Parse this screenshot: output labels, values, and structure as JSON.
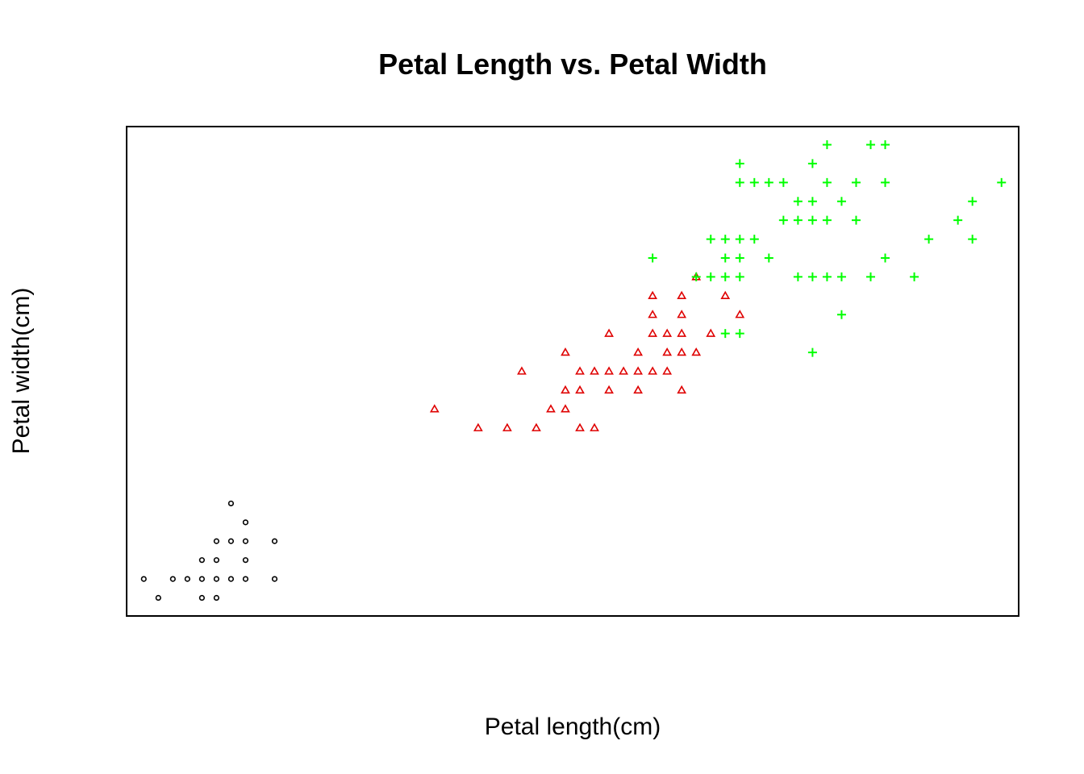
{
  "chart_data": {
    "type": "scatter",
    "title": "Petal Length vs. Petal Width",
    "xlabel": "Petal length(cm)",
    "ylabel": "Petal width(cm)",
    "xlim": [
      0.882,
      7.018
    ],
    "ylim": [
      0.004,
      2.596
    ],
    "axes_ticks_shown": false,
    "grid": false,
    "legend": "none",
    "series": [
      {
        "marker": "circle",
        "color": "#000000",
        "points": [
          [
            1.1,
            0.1
          ],
          [
            1.2,
            0.2
          ],
          [
            1.3,
            0.2
          ],
          [
            1.4,
            0.1
          ],
          [
            1.4,
            0.2
          ],
          [
            1.4,
            0.3
          ],
          [
            1.5,
            0.1
          ],
          [
            1.5,
            0.2
          ],
          [
            1.5,
            0.3
          ],
          [
            1.5,
            0.4
          ],
          [
            1.6,
            0.2
          ],
          [
            1.6,
            0.4
          ],
          [
            1.6,
            0.6
          ],
          [
            1.7,
            0.2
          ],
          [
            1.7,
            0.3
          ],
          [
            1.7,
            0.4
          ],
          [
            1.7,
            0.5
          ],
          [
            1.9,
            0.2
          ],
          [
            1.9,
            0.4
          ],
          [
            1.0,
            0.2
          ]
        ]
      },
      {
        "marker": "triangle",
        "color": "#DF0000",
        "points": [
          [
            3.0,
            1.1
          ],
          [
            3.3,
            1.0
          ],
          [
            3.5,
            1.0
          ],
          [
            3.6,
            1.3
          ],
          [
            3.7,
            1.0
          ],
          [
            3.8,
            1.1
          ],
          [
            3.9,
            1.1
          ],
          [
            3.9,
            1.2
          ],
          [
            3.9,
            1.4
          ],
          [
            4.0,
            1.0
          ],
          [
            4.0,
            1.2
          ],
          [
            4.0,
            1.3
          ],
          [
            4.1,
            1.0
          ],
          [
            4.1,
            1.3
          ],
          [
            4.2,
            1.2
          ],
          [
            4.2,
            1.3
          ],
          [
            4.2,
            1.5
          ],
          [
            4.3,
            1.3
          ],
          [
            4.4,
            1.2
          ],
          [
            4.4,
            1.3
          ],
          [
            4.4,
            1.4
          ],
          [
            4.5,
            1.3
          ],
          [
            4.5,
            1.5
          ],
          [
            4.5,
            1.6
          ],
          [
            4.5,
            1.7
          ],
          [
            4.6,
            1.3
          ],
          [
            4.6,
            1.4
          ],
          [
            4.6,
            1.5
          ],
          [
            4.7,
            1.2
          ],
          [
            4.7,
            1.4
          ],
          [
            4.7,
            1.5
          ],
          [
            4.7,
            1.6
          ],
          [
            4.7,
            1.7
          ],
          [
            4.8,
            1.4
          ],
          [
            4.8,
            1.8
          ],
          [
            4.9,
            1.5
          ],
          [
            5.0,
            1.7
          ],
          [
            5.1,
            1.6
          ]
        ]
      },
      {
        "marker": "plus",
        "color": "#00FF00",
        "points": [
          [
            4.5,
            1.9
          ],
          [
            4.8,
            1.8
          ],
          [
            4.9,
            1.8
          ],
          [
            4.9,
            2.0
          ],
          [
            5.0,
            1.5
          ],
          [
            5.0,
            1.8
          ],
          [
            5.0,
            1.9
          ],
          [
            5.0,
            2.0
          ],
          [
            5.1,
            1.5
          ],
          [
            5.1,
            1.8
          ],
          [
            5.1,
            1.9
          ],
          [
            5.1,
            2.0
          ],
          [
            5.1,
            2.3
          ],
          [
            5.1,
            2.4
          ],
          [
            5.2,
            2.0
          ],
          [
            5.2,
            2.3
          ],
          [
            5.3,
            1.9
          ],
          [
            5.3,
            2.3
          ],
          [
            5.4,
            2.1
          ],
          [
            5.4,
            2.3
          ],
          [
            5.5,
            1.8
          ],
          [
            5.5,
            2.1
          ],
          [
            5.5,
            2.2
          ],
          [
            5.6,
            1.4
          ],
          [
            5.6,
            1.8
          ],
          [
            5.6,
            2.1
          ],
          [
            5.6,
            2.2
          ],
          [
            5.6,
            2.4
          ],
          [
            5.7,
            1.8
          ],
          [
            5.7,
            2.1
          ],
          [
            5.7,
            2.3
          ],
          [
            5.7,
            2.5
          ],
          [
            5.8,
            1.6
          ],
          [
            5.8,
            1.8
          ],
          [
            5.8,
            2.2
          ],
          [
            5.9,
            2.1
          ],
          [
            5.9,
            2.3
          ],
          [
            6.0,
            1.8
          ],
          [
            6.0,
            2.5
          ],
          [
            6.1,
            1.9
          ],
          [
            6.1,
            2.3
          ],
          [
            6.1,
            2.5
          ],
          [
            6.3,
            1.8
          ],
          [
            6.4,
            2.0
          ],
          [
            6.6,
            2.1
          ],
          [
            6.7,
            2.0
          ],
          [
            6.7,
            2.2
          ],
          [
            6.9,
            2.3
          ]
        ]
      }
    ]
  }
}
